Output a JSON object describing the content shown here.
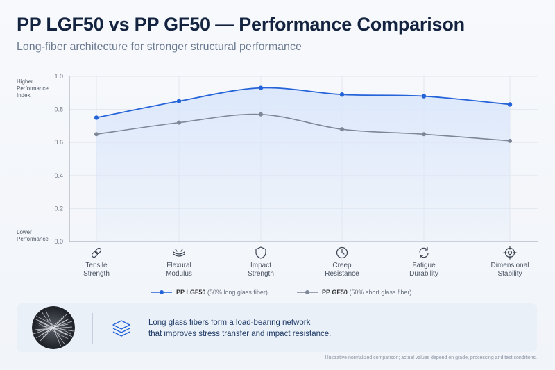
{
  "header": {
    "title": "PP LGF50 vs PP GF50 — Performance Comparison",
    "subtitle": "Long-fiber architecture for stronger structural performance"
  },
  "y_captions": {
    "top": "Higher\nPerformance\nIndex",
    "bottom": "Lower\nPerformance"
  },
  "categories": [
    {
      "label": "Tensile\nStrength",
      "icon": "link-icon"
    },
    {
      "label": "Flexural\nModulus",
      "icon": "bend-icon"
    },
    {
      "label": "Impact\nStrength",
      "icon": "shield-icon"
    },
    {
      "label": "Creep\nResistance",
      "icon": "clock-icon"
    },
    {
      "label": "Fatigue\nDurability",
      "icon": "cycle-icon"
    },
    {
      "label": "Dimensional\nStability",
      "icon": "target-icon"
    }
  ],
  "legend": {
    "lgf_name": "PP LGF50",
    "lgf_desc": "(50% long glass fiber)",
    "gf_name": "PP GF50",
    "gf_desc": "(50% short glass fiber)"
  },
  "info": {
    "line1": "Long glass fibers form a load-bearing network",
    "line2": "that improves stress transfer and impact resistance.",
    "icon": "layers-icon",
    "image": "glass-fiber-image"
  },
  "footnote": "Illustrative normalized comparison; actual values depend on grade, processing and test conditions.",
  "colors": {
    "lgf": "#2563d9",
    "gf": "#7d8797",
    "fill": "#dbe7fb",
    "grid": "#e3e7ee",
    "axis": "#9aa3b0"
  },
  "chart_data": {
    "type": "line",
    "categories": [
      "Tensile Strength",
      "Flexural Modulus",
      "Impact Strength",
      "Creep Resistance",
      "Fatigue Durability",
      "Dimensional Stability"
    ],
    "series": [
      {
        "name": "PP LGF50",
        "values": [
          0.75,
          0.85,
          0.93,
          0.89,
          0.88,
          0.83
        ]
      },
      {
        "name": "PP GF50",
        "values": [
          0.65,
          0.72,
          0.77,
          0.68,
          0.65,
          0.61
        ]
      }
    ],
    "ylim": [
      0,
      1.0
    ],
    "yticks": [
      "0.0",
      "0.2",
      "0.4",
      "0.6",
      "0.8",
      "1.0"
    ],
    "grid": true,
    "legend_position": "bottom-center"
  }
}
